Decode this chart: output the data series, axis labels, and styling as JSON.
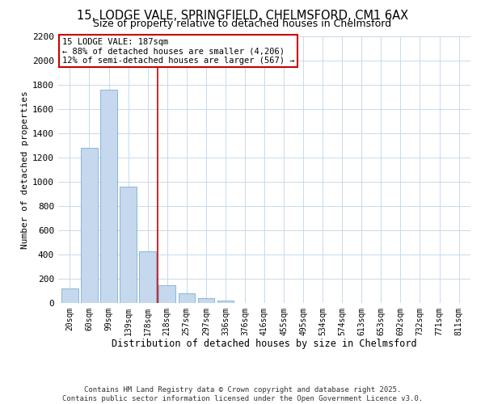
{
  "title_line1": "15, LODGE VALE, SPRINGFIELD, CHELMSFORD, CM1 6AX",
  "title_line2": "Size of property relative to detached houses in Chelmsford",
  "xlabel": "Distribution of detached houses by size in Chelmsford",
  "ylabel": "Number of detached properties",
  "bar_labels": [
    "20sqm",
    "60sqm",
    "99sqm",
    "139sqm",
    "178sqm",
    "218sqm",
    "257sqm",
    "297sqm",
    "336sqm",
    "376sqm",
    "416sqm",
    "455sqm",
    "495sqm",
    "534sqm",
    "574sqm",
    "613sqm",
    "653sqm",
    "692sqm",
    "732sqm",
    "771sqm",
    "811sqm"
  ],
  "bar_values": [
    120,
    1280,
    1760,
    960,
    430,
    150,
    80,
    40,
    20,
    0,
    0,
    0,
    0,
    0,
    0,
    0,
    0,
    0,
    0,
    0,
    0
  ],
  "bar_color": "#c5d8ee",
  "bar_edge_color": "#7aafd4",
  "vline_x": 4.5,
  "vline_color": "#cc0000",
  "annotation_title": "15 LODGE VALE: 187sqm",
  "annotation_line1": "← 88% of detached houses are smaller (4,206)",
  "annotation_line2": "12% of semi-detached houses are larger (567) →",
  "annotation_box_color": "#ffffff",
  "annotation_box_edge_color": "#cc0000",
  "ylim": [
    0,
    2200
  ],
  "yticks": [
    0,
    200,
    400,
    600,
    800,
    1000,
    1200,
    1400,
    1600,
    1800,
    2000,
    2200
  ],
  "footer_line1": "Contains HM Land Registry data © Crown copyright and database right 2025.",
  "footer_line2": "Contains public sector information licensed under the Open Government Licence v3.0.",
  "bg_color": "#ffffff",
  "grid_color": "#c8daea"
}
